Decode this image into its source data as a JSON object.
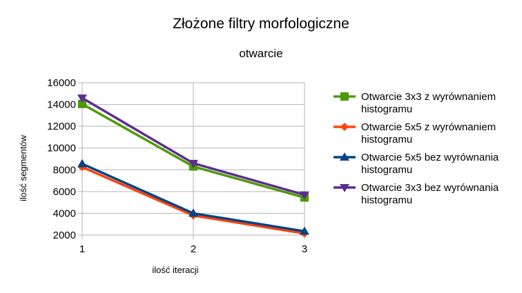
{
  "chart_data": {
    "type": "line",
    "title": "Złożone filtry morfologiczne",
    "subtitle": "otwarcie",
    "xlabel": "ilość iteracji",
    "ylabel": "ilość segmentów",
    "x": [
      1,
      2,
      3
    ],
    "x_tick_labels": [
      "1",
      "2",
      "3"
    ],
    "ylim": [
      2000,
      16000
    ],
    "y_ticks": [
      2000,
      4000,
      6000,
      8000,
      10000,
      12000,
      14000,
      16000
    ],
    "y_tick_labels": [
      "2000",
      "4000",
      "6000",
      "8000",
      "10000",
      "12000",
      "14000",
      "16000"
    ],
    "grid": true,
    "legend_position": "right",
    "series": [
      {
        "name_lines": [
          "Otwarcie 3x3 z wyrównaniem",
          "histogramu"
        ],
        "values": [
          14050,
          8300,
          5450
        ],
        "color": "#4e9a06",
        "marker": "square"
      },
      {
        "name_lines": [
          "Otwarcie 5x5 z wyrównaniem",
          "histogramu"
        ],
        "values": [
          8250,
          3800,
          2150
        ],
        "color": "#ff420e",
        "marker": "diamond"
      },
      {
        "name_lines": [
          "Otwarcie 5x5 bez wyrównania",
          "histogramu"
        ],
        "values": [
          8550,
          4000,
          2350
        ],
        "color": "#004586",
        "marker": "triangle-up"
      },
      {
        "name_lines": [
          "Otwarcie 3x3 bez wyrównania",
          "histogramu"
        ],
        "values": [
          14600,
          8600,
          5700
        ],
        "color": "#5c2d91",
        "marker": "triangle-down"
      }
    ]
  }
}
